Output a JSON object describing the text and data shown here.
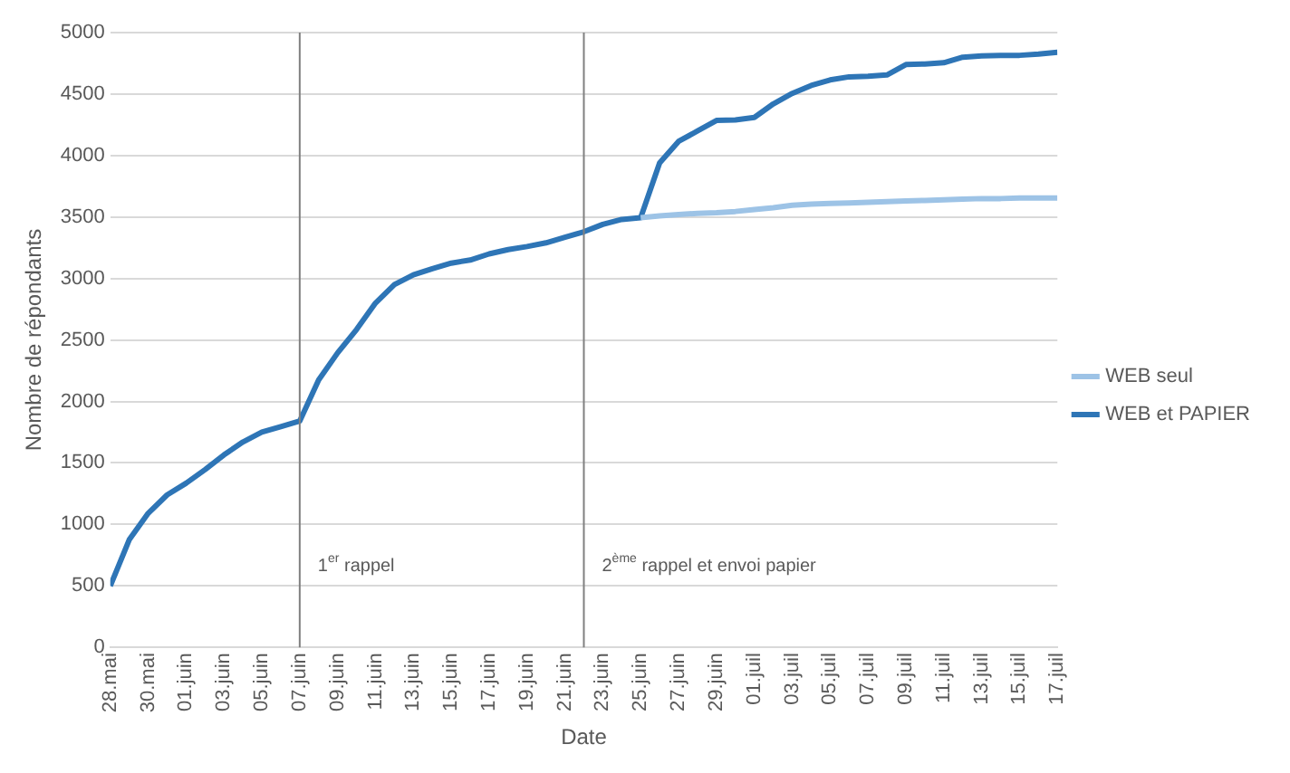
{
  "chart_data": {
    "type": "line",
    "xlabel": "Date",
    "ylabel": "Nombre de répondants",
    "x": [
      "--05-28",
      "--05-29",
      "--05-30",
      "--05-31",
      "--06-01",
      "--06-02",
      "--06-03",
      "--06-04",
      "--06-05",
      "--06-06",
      "--06-07",
      "--06-08",
      "--06-09",
      "--06-10",
      "--06-11",
      "--06-12",
      "--06-13",
      "--06-14",
      "--06-15",
      "--06-16",
      "--06-17",
      "--06-18",
      "--06-19",
      "--06-20",
      "--06-21",
      "--06-22",
      "--06-23",
      "--06-24",
      "--06-25",
      "--06-26",
      "--06-27",
      "--06-28",
      "--06-29",
      "--06-30",
      "--07-01",
      "--07-02",
      "--07-03",
      "--07-04",
      "--07-05",
      "--07-06",
      "--07-07",
      "--07-08",
      "--07-09",
      "--07-10",
      "--07-11",
      "--07-12",
      "--07-13",
      "--07-14",
      "--07-15",
      "--07-16",
      "--07-17"
    ],
    "series": [
      {
        "name": "WEB seul",
        "color": "#9dc3e6",
        "values": [
          null,
          null,
          null,
          null,
          null,
          null,
          null,
          null,
          null,
          null,
          null,
          null,
          null,
          null,
          null,
          null,
          null,
          null,
          null,
          null,
          null,
          null,
          null,
          null,
          null,
          null,
          null,
          null,
          3495,
          3510,
          3520,
          3530,
          3535,
          3545,
          3560,
          3575,
          3595,
          3605,
          3610,
          3615,
          3620,
          3625,
          3630,
          3635,
          3640,
          3645,
          3650,
          3650,
          3655,
          3655,
          3655
        ]
      },
      {
        "name": "WEB et PAPIER",
        "color": "#2e75b6",
        "values": [
          500,
          875,
          1090,
          1240,
          1335,
          1445,
          1565,
          1670,
          1750,
          1795,
          1840,
          2175,
          2395,
          2585,
          2800,
          2950,
          3030,
          3080,
          3125,
          3150,
          3200,
          3235,
          3260,
          3290,
          3335,
          3380,
          3440,
          3480,
          3495,
          3940,
          4115,
          4200,
          4285,
          4290,
          4310,
          4420,
          4505,
          4570,
          4615,
          4640,
          4645,
          4655,
          4740,
          4745,
          4755,
          4800,
          4810,
          4815,
          4815,
          4825,
          4840
        ]
      }
    ],
    "xlim": [
      "--05-28",
      "--07-17"
    ],
    "xticks": [
      {
        "value": "--05-28",
        "label": "28.mai"
      },
      {
        "value": "--05-30",
        "label": "30.mai"
      },
      {
        "value": "--06-01",
        "label": "01.juin"
      },
      {
        "value": "--06-03",
        "label": "03.juin"
      },
      {
        "value": "--06-05",
        "label": "05.juin"
      },
      {
        "value": "--06-07",
        "label": "07.juin"
      },
      {
        "value": "--06-09",
        "label": "09.juin"
      },
      {
        "value": "--06-11",
        "label": "11.juin"
      },
      {
        "value": "--06-13",
        "label": "13.juin"
      },
      {
        "value": "--06-15",
        "label": "15.juin"
      },
      {
        "value": "--06-17",
        "label": "17.juin"
      },
      {
        "value": "--06-19",
        "label": "19.juin"
      },
      {
        "value": "--06-21",
        "label": "21.juin"
      },
      {
        "value": "--06-23",
        "label": "23.juin"
      },
      {
        "value": "--06-25",
        "label": "25.juin"
      },
      {
        "value": "--06-27",
        "label": "27.juin"
      },
      {
        "value": "--06-29",
        "label": "29.juin"
      },
      {
        "value": "--07-01",
        "label": "01.juil"
      },
      {
        "value": "--07-03",
        "label": "03.juil"
      },
      {
        "value": "--07-05",
        "label": "05.juil"
      },
      {
        "value": "--07-07",
        "label": "07.juil"
      },
      {
        "value": "--07-09",
        "label": "09.juil"
      },
      {
        "value": "--07-11",
        "label": "11.juil"
      },
      {
        "value": "--07-13",
        "label": "13.juil"
      },
      {
        "value": "--07-15",
        "label": "15.juil"
      },
      {
        "value": "--07-17",
        "label": "17.juil"
      }
    ],
    "ylim": [
      0,
      5000
    ],
    "yticks": [
      0,
      500,
      1000,
      1500,
      2000,
      2500,
      3000,
      3500,
      4000,
      4500,
      5000
    ],
    "ref_lines": [
      {
        "axis": "x",
        "value": "--06-07",
        "label": "1$^{er}$ rappel",
        "color": "#808080"
      },
      {
        "axis": "x",
        "value": "--06-22",
        "label": "2$^{ème}$ rappel et envoi papier",
        "color": "#808080"
      }
    ],
    "grid": "y",
    "legend": "right",
    "marker": "none",
    "line_style": "solid"
  }
}
